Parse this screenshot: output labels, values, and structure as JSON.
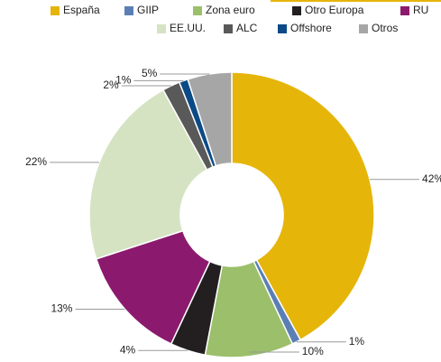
{
  "chart_data": {
    "type": "donut",
    "categories": [
      "España",
      "GIIP",
      "Zona euro",
      "Otro Europa",
      "RU",
      "EE.UU.",
      "ALC",
      "Offshore",
      "Otros"
    ],
    "values": [
      42,
      1,
      10,
      4,
      13,
      22,
      2,
      1,
      5
    ],
    "value_labels": [
      "42%",
      "1%",
      "10%",
      "4%",
      "13%",
      "22%",
      "2%",
      "1%",
      "5%"
    ],
    "colors": [
      "#e6b50a",
      "#5b7fb5",
      "#9bbf6a",
      "#231f20",
      "#8b1a6e",
      "#d5e3c3",
      "#595959",
      "#0b4a86",
      "#a6a6a6"
    ],
    "legend": "top"
  }
}
